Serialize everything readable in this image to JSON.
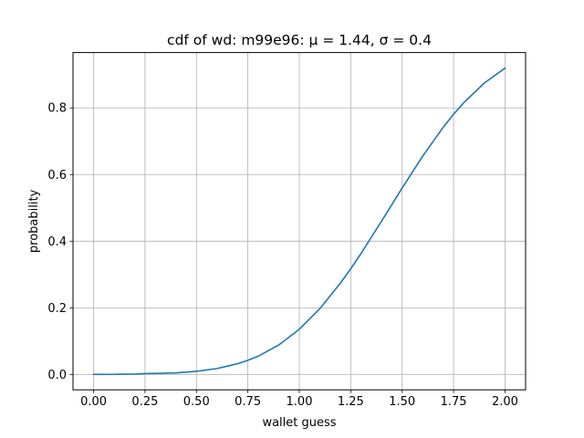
{
  "chart_data": {
    "type": "line",
    "title": "cdf of wd: m99e96: μ = 1.44, σ = 0.4",
    "xlabel": "wallet guess",
    "ylabel": "probability",
    "xlim": [
      -0.1,
      2.1
    ],
    "ylim": [
      -0.046,
      0.966
    ],
    "xticks": [
      0.0,
      0.25,
      0.5,
      0.75,
      1.0,
      1.25,
      1.5,
      1.75,
      2.0
    ],
    "xtick_labels": [
      "0.00",
      "0.25",
      "0.50",
      "0.75",
      "1.00",
      "1.25",
      "1.50",
      "1.75",
      "2.00"
    ],
    "yticks": [
      0.0,
      0.2,
      0.4,
      0.6,
      0.8
    ],
    "ytick_labels": [
      "0.0",
      "0.2",
      "0.4",
      "0.6",
      "0.8"
    ],
    "grid": true,
    "series": [
      {
        "color": "#1f77b4",
        "x": [
          0.0,
          0.1,
          0.2,
          0.25,
          0.3,
          0.4,
          0.5,
          0.6,
          0.7,
          0.75,
          0.8,
          0.9,
          1.0,
          1.1,
          1.2,
          1.25,
          1.3,
          1.4,
          1.44,
          1.5,
          1.6,
          1.7,
          1.75,
          1.8,
          1.9,
          2.0
        ],
        "y": [
          0.0002,
          0.0004,
          0.0013,
          0.0027,
          0.0032,
          0.0047,
          0.0094,
          0.0179,
          0.0322,
          0.0425,
          0.0548,
          0.0885,
          0.1357,
          0.1977,
          0.2743,
          0.317,
          0.3632,
          0.4602,
          0.5,
          0.5596,
          0.6554,
          0.7422,
          0.781,
          0.8159,
          0.8749,
          0.9192
        ]
      }
    ]
  }
}
